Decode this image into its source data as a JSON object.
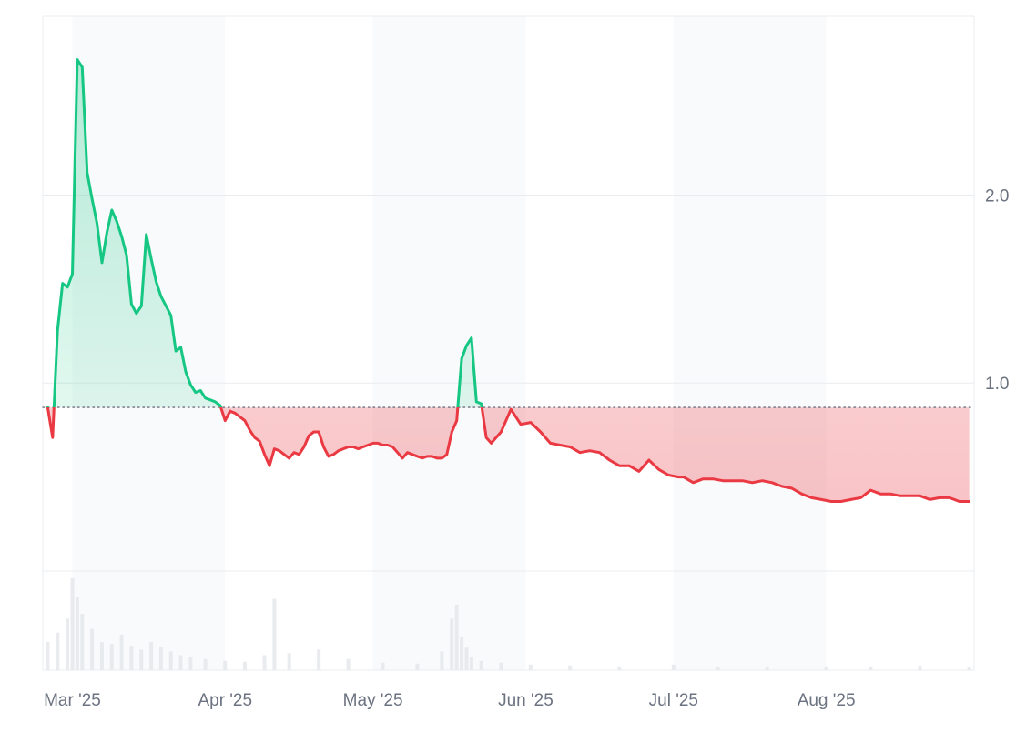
{
  "chart_data": {
    "type": "area",
    "title": "",
    "xlabel": "",
    "ylabel": "",
    "baseline": 0.87,
    "ylim": [
      0.0,
      2.95
    ],
    "yticks": [
      {
        "value": 1.0,
        "label": "1.0"
      },
      {
        "value": 2.0,
        "label": "2.0"
      }
    ],
    "xlim": [
      "2025-02-23",
      "2025-08-31"
    ],
    "xticks": [
      {
        "date": "2025-03-01",
        "label": "Mar '25"
      },
      {
        "date": "2025-04-01",
        "label": "Apr '25"
      },
      {
        "date": "2025-05-01",
        "label": "May '25"
      },
      {
        "date": "2025-06-01",
        "label": "Jun '25"
      },
      {
        "date": "2025-07-01",
        "label": "Jul '25"
      },
      {
        "date": "2025-08-01",
        "label": "Aug '25"
      }
    ],
    "grid": true,
    "legend": "none",
    "colors": {
      "above": "#16c784",
      "above_fill": "#d5f5e6",
      "below": "#ea3943",
      "below_fill": "#f8d3d6",
      "baseline": "#6b7280",
      "grid": "#e9ecef",
      "volume": "#e5e7eb"
    },
    "series": [
      {
        "x": [
          "2025-02-24",
          "2025-02-25",
          "2025-02-26",
          "2025-02-27",
          "2025-02-28",
          "2025-03-01",
          "2025-03-02",
          "2025-03-03",
          "2025-03-04",
          "2025-03-05",
          "2025-03-06",
          "2025-03-07",
          "2025-03-08",
          "2025-03-09",
          "2025-03-10",
          "2025-03-11",
          "2025-03-12",
          "2025-03-13",
          "2025-03-14",
          "2025-03-15",
          "2025-03-16",
          "2025-03-17",
          "2025-03-18",
          "2025-03-19",
          "2025-03-20",
          "2025-03-21",
          "2025-03-22",
          "2025-03-23",
          "2025-03-24",
          "2025-03-25",
          "2025-03-26",
          "2025-03-27",
          "2025-03-28",
          "2025-03-29",
          "2025-03-30",
          "2025-03-31",
          "2025-04-01",
          "2025-04-02",
          "2025-04-03",
          "2025-04-04",
          "2025-04-05",
          "2025-04-06",
          "2025-04-07",
          "2025-04-08",
          "2025-04-09",
          "2025-04-10",
          "2025-04-11",
          "2025-04-12",
          "2025-04-13",
          "2025-04-14",
          "2025-04-15",
          "2025-04-16",
          "2025-04-17",
          "2025-04-18",
          "2025-04-19",
          "2025-04-20",
          "2025-04-21",
          "2025-04-22",
          "2025-04-23",
          "2025-04-24",
          "2025-04-25",
          "2025-04-26",
          "2025-04-27",
          "2025-04-28",
          "2025-04-29",
          "2025-04-30",
          "2025-05-01",
          "2025-05-02",
          "2025-05-03",
          "2025-05-04",
          "2025-05-05",
          "2025-05-06",
          "2025-05-07",
          "2025-05-08",
          "2025-05-09",
          "2025-05-10",
          "2025-05-11",
          "2025-05-12",
          "2025-05-13",
          "2025-05-14",
          "2025-05-15",
          "2025-05-16",
          "2025-05-17",
          "2025-05-18",
          "2025-05-19",
          "2025-05-20",
          "2025-05-21",
          "2025-05-22",
          "2025-05-23",
          "2025-05-24",
          "2025-05-25",
          "2025-05-27",
          "2025-05-29",
          "2025-05-31",
          "2025-06-02",
          "2025-06-04",
          "2025-06-06",
          "2025-06-08",
          "2025-06-10",
          "2025-06-12",
          "2025-06-14",
          "2025-06-16",
          "2025-06-18",
          "2025-06-20",
          "2025-06-22",
          "2025-06-24",
          "2025-06-26",
          "2025-06-28",
          "2025-06-30",
          "2025-07-02",
          "2025-07-03",
          "2025-07-05",
          "2025-07-07",
          "2025-07-09",
          "2025-07-11",
          "2025-07-13",
          "2025-07-15",
          "2025-07-17",
          "2025-07-19",
          "2025-07-21",
          "2025-07-23",
          "2025-07-25",
          "2025-07-27",
          "2025-07-29",
          "2025-07-31",
          "2025-08-02",
          "2025-08-04",
          "2025-08-06",
          "2025-08-08",
          "2025-08-10",
          "2025-08-12",
          "2025-08-14",
          "2025-08-16",
          "2025-08-18",
          "2025-08-20",
          "2025-08-22",
          "2025-08-24",
          "2025-08-26",
          "2025-08-28",
          "2025-08-30"
        ],
        "y": [
          0.87,
          0.71,
          1.28,
          1.53,
          1.51,
          1.58,
          2.72,
          2.68,
          2.12,
          1.98,
          1.85,
          1.64,
          1.8,
          1.92,
          1.86,
          1.78,
          1.68,
          1.42,
          1.37,
          1.41,
          1.79,
          1.66,
          1.54,
          1.46,
          1.41,
          1.36,
          1.17,
          1.19,
          1.06,
          0.99,
          0.95,
          0.96,
          0.92,
          0.91,
          0.9,
          0.88,
          0.8,
          0.85,
          0.84,
          0.82,
          0.8,
          0.75,
          0.71,
          0.69,
          0.62,
          0.56,
          0.65,
          0.64,
          0.62,
          0.6,
          0.63,
          0.62,
          0.66,
          0.72,
          0.74,
          0.74,
          0.66,
          0.61,
          0.62,
          0.64,
          0.65,
          0.66,
          0.66,
          0.65,
          0.66,
          0.67,
          0.68,
          0.68,
          0.67,
          0.67,
          0.66,
          0.63,
          0.6,
          0.63,
          0.62,
          0.61,
          0.6,
          0.61,
          0.61,
          0.6,
          0.6,
          0.62,
          0.74,
          0.8,
          1.13,
          1.2,
          1.24,
          0.9,
          0.89,
          0.71,
          0.68,
          0.74,
          0.86,
          0.78,
          0.79,
          0.74,
          0.68,
          0.67,
          0.66,
          0.63,
          0.64,
          0.63,
          0.59,
          0.56,
          0.56,
          0.53,
          0.59,
          0.54,
          0.51,
          0.5,
          0.5,
          0.47,
          0.49,
          0.49,
          0.48,
          0.48,
          0.48,
          0.47,
          0.48,
          0.47,
          0.45,
          0.44,
          0.41,
          0.39,
          0.38,
          0.37,
          0.37,
          0.38,
          0.39,
          0.43,
          0.41,
          0.41,
          0.4,
          0.4,
          0.4,
          0.38,
          0.39,
          0.39,
          0.37,
          0.37
        ]
      }
    ],
    "volume": {
      "x": [
        "2025-02-24",
        "2025-02-26",
        "2025-02-28",
        "2025-03-01",
        "2025-03-02",
        "2025-03-03",
        "2025-03-05",
        "2025-03-07",
        "2025-03-09",
        "2025-03-11",
        "2025-03-13",
        "2025-03-15",
        "2025-03-17",
        "2025-03-19",
        "2025-03-21",
        "2025-03-23",
        "2025-03-25",
        "2025-03-28",
        "2025-04-01",
        "2025-04-05",
        "2025-04-09",
        "2025-04-11",
        "2025-04-14",
        "2025-04-20",
        "2025-04-26",
        "2025-05-03",
        "2025-05-10",
        "2025-05-15",
        "2025-05-17",
        "2025-05-18",
        "2025-05-19",
        "2025-05-20",
        "2025-05-21",
        "2025-05-23",
        "2025-05-27",
        "2025-06-02",
        "2025-06-10",
        "2025-06-20",
        "2025-07-01",
        "2025-07-10",
        "2025-07-20",
        "2025-08-01",
        "2025-08-10",
        "2025-08-20",
        "2025-08-30"
      ],
      "values": [
        0.3,
        0.4,
        0.55,
        0.98,
        0.78,
        0.6,
        0.44,
        0.3,
        0.28,
        0.38,
        0.26,
        0.22,
        0.3,
        0.25,
        0.2,
        0.16,
        0.14,
        0.12,
        0.1,
        0.09,
        0.16,
        0.76,
        0.18,
        0.22,
        0.12,
        0.08,
        0.07,
        0.2,
        0.55,
        0.7,
        0.36,
        0.24,
        0.14,
        0.1,
        0.08,
        0.06,
        0.05,
        0.04,
        0.06,
        0.04,
        0.04,
        0.03,
        0.04,
        0.05,
        0.03
      ]
    }
  }
}
